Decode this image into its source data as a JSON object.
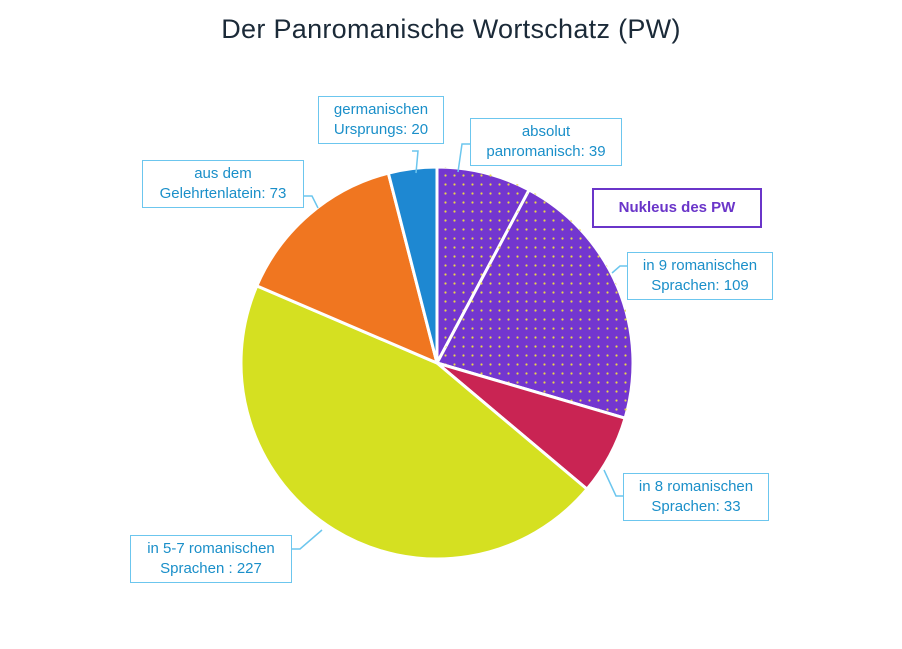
{
  "chart_data": {
    "type": "pie",
    "title": "Der Panromanische  Wortschatz  (PW)",
    "slices": [
      {
        "label_line1": "absolut",
        "label_line2": "panromanisch: 39",
        "value": 39,
        "color": "#7336cf",
        "pattern": "dots"
      },
      {
        "label_line1": "in 9 romanischen",
        "label_line2": "Sprachen: 109",
        "value": 109,
        "color": "#7336cf",
        "pattern": "dots"
      },
      {
        "label_line1": "in 8 romanischen",
        "label_line2": "Sprachen: 33",
        "value": 33,
        "color": "#c92453",
        "pattern": "none"
      },
      {
        "label_line1": "in 5-7 romanischen",
        "label_line2": "Sprachen : 227",
        "value": 227,
        "color": "#d5e021",
        "pattern": "none"
      },
      {
        "label_line1": "aus dem",
        "label_line2": "Gelehrtenlatein:  73",
        "value": 73,
        "color": "#f07620",
        "pattern": "none"
      },
      {
        "label_line1": "germanischen",
        "label_line2": "Ursprungs: 20",
        "value": 20,
        "color": "#1e88d2",
        "pattern": "none"
      }
    ],
    "group_label": "Nukleus des PW",
    "dot_color": "#e8d64a",
    "callout_border_color": "#6cc6ee",
    "callout_text_color": "#1a8fc9"
  }
}
